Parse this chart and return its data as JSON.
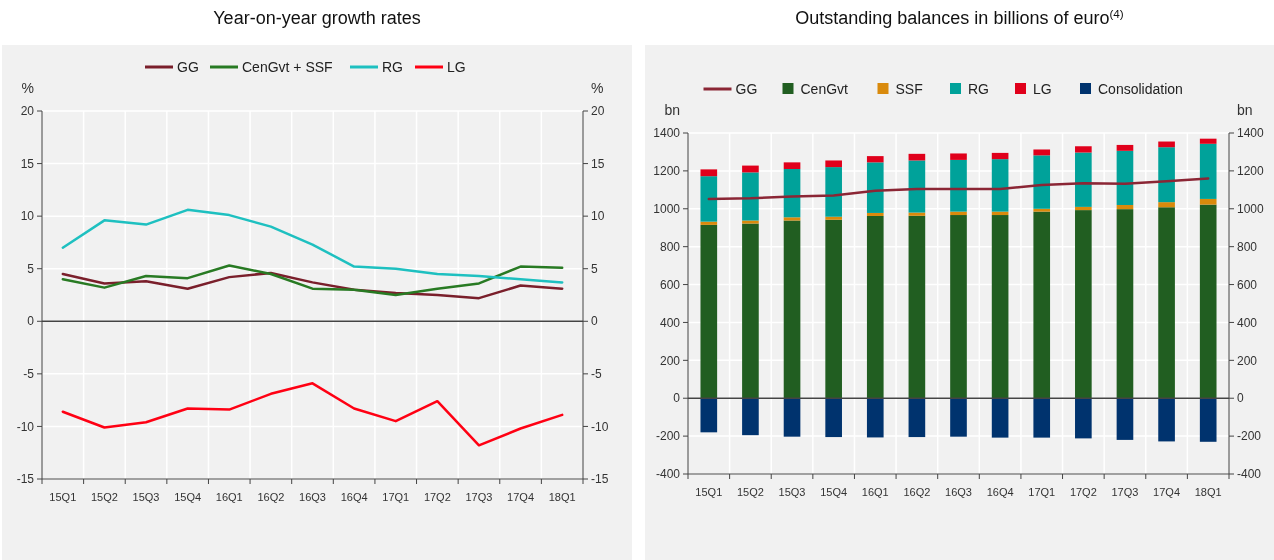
{
  "chart_data": [
    {
      "type": "line",
      "title": "Year-on-year growth rates",
      "ylabel": "%",
      "y2label": "%",
      "categories": [
        "15Q1",
        "15Q2",
        "15Q3",
        "15Q4",
        "16Q1",
        "16Q2",
        "16Q3",
        "16Q4",
        "17Q1",
        "17Q2",
        "17Q3",
        "17Q4",
        "18Q1"
      ],
      "series": [
        {
          "name": "GG",
          "color": "#7a1f2b",
          "values": [
            4.5,
            3.6,
            3.8,
            3.1,
            4.2,
            4.6,
            3.7,
            3.0,
            2.7,
            2.5,
            2.2,
            3.4,
            3.1
          ]
        },
        {
          "name": "CenGvt + SSF",
          "color": "#287a23",
          "values": [
            4.0,
            3.2,
            4.3,
            4.1,
            5.3,
            4.5,
            3.1,
            3.0,
            2.5,
            3.1,
            3.6,
            5.2,
            5.1
          ]
        },
        {
          "name": "RG",
          "color": "#1ec0c0",
          "values": [
            7.0,
            9.6,
            9.2,
            10.6,
            10.1,
            9.0,
            7.3,
            5.2,
            5.0,
            4.5,
            4.3,
            4.0,
            3.7
          ]
        },
        {
          "name": "LG",
          "color": "#ff0013",
          "values": [
            -8.6,
            -10.1,
            -9.6,
            -8.3,
            -8.4,
            -6.9,
            -5.9,
            -8.3,
            -9.5,
            -7.6,
            -11.8,
            -10.2,
            -8.9
          ]
        }
      ],
      "ylim": [
        -15,
        20
      ],
      "yticks": [
        -15,
        -10,
        -5,
        0,
        5,
        10,
        15,
        20
      ],
      "y2lim": [
        -15,
        20
      ],
      "y2ticks": [
        -15,
        -10,
        -5,
        0,
        5,
        10,
        15,
        20
      ],
      "grid": true,
      "legend": "top"
    },
    {
      "type": "bar",
      "title": "Outstanding balances in billions of euro$^{(4)}$",
      "ylabel": "bn",
      "y2label": "bn",
      "stacked": true,
      "categories": [
        "15Q1",
        "15Q2",
        "15Q3",
        "15Q4",
        "16Q1",
        "16Q2",
        "16Q3",
        "16Q4",
        "17Q1",
        "17Q2",
        "17Q3",
        "17Q4",
        "18Q1"
      ],
      "series": [
        {
          "name": "GG",
          "type": "line",
          "color": "#8b2635",
          "values": [
            1052,
            1055,
            1065,
            1070,
            1095,
            1105,
            1105,
            1105,
            1125,
            1135,
            1132,
            1145,
            1160
          ]
        },
        {
          "name": "CenGvt",
          "color": "#215e21",
          "values": [
            915,
            922,
            938,
            942,
            962,
            963,
            967,
            967,
            985,
            993,
            998,
            1008,
            1022
          ]
        },
        {
          "name": "SSF",
          "color": "#d98a0c",
          "values": [
            17,
            16,
            17,
            16,
            16,
            17,
            18,
            18,
            15,
            17,
            22,
            27,
            30
          ]
        },
        {
          "name": "RG",
          "color": "#00a29a",
          "values": [
            240,
            254,
            255,
            262,
            267,
            275,
            273,
            277,
            282,
            287,
            286,
            290,
            291
          ]
        },
        {
          "name": "LG",
          "color": "#e0001b",
          "values": [
            36,
            36,
            35,
            35,
            33,
            35,
            34,
            33,
            31,
            33,
            31,
            30,
            27
          ]
        },
        {
          "name": "Consolidation",
          "color": "#00336e",
          "values": [
            -180,
            -195,
            -203,
            -205,
            -207,
            -205,
            -203,
            -208,
            -208,
            -212,
            -220,
            -228,
            -230
          ]
        }
      ],
      "ylim": [
        -400,
        1400
      ],
      "yticks": [
        -400,
        -200,
        0,
        200,
        400,
        600,
        800,
        1000,
        1200,
        1400
      ],
      "y2lim": [
        -400,
        1400
      ],
      "y2ticks": [
        -400,
        -200,
        0,
        200,
        400,
        600,
        800,
        1000,
        1200,
        1400
      ],
      "grid": true,
      "legend": "top"
    }
  ]
}
